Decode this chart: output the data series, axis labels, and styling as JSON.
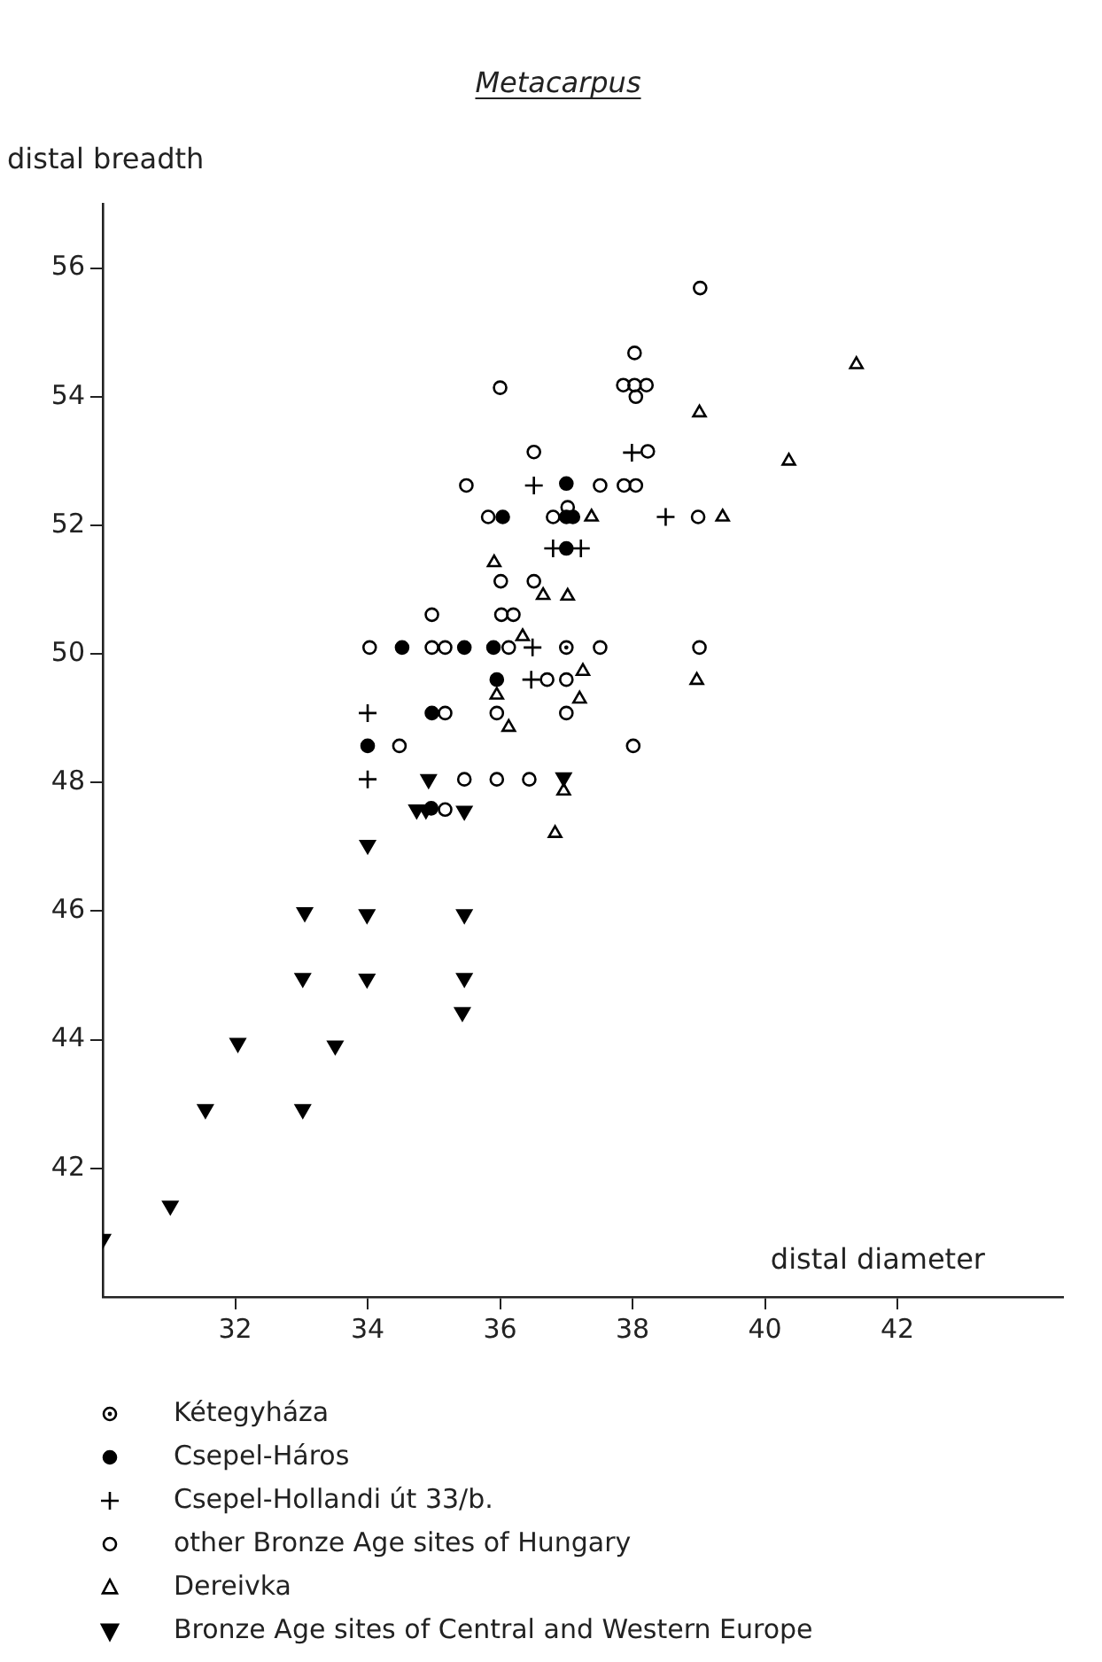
{
  "chart_data": {
    "type": "scatter",
    "title": "Metacarpus",
    "xlabel": "distal diameter",
    "ylabel": "distal breadth",
    "xlim": [
      30,
      44.5
    ],
    "ylim": [
      40,
      57
    ],
    "xticks": [
      32,
      34,
      36,
      38,
      40,
      42
    ],
    "yticks": [
      42,
      44,
      46,
      48,
      50,
      52,
      54,
      56
    ],
    "grid": false,
    "legend": "bottom",
    "series": [
      {
        "name": "Kétegyháza",
        "color": "#000000",
        "marker": "circle-dot",
        "x": [
          37.0
        ],
        "values": [
          50.1
        ]
      },
      {
        "name": "Csepel-Háros",
        "color": "#000000",
        "marker": "circle-filled",
        "x": [
          37.0,
          36.04,
          37.0,
          37.1,
          37.0,
          34.52,
          35.46,
          35.9,
          35.95,
          34.97,
          34.0,
          34.96
        ],
        "values": [
          52.65,
          52.13,
          52.13,
          52.13,
          51.64,
          50.1,
          50.1,
          50.1,
          49.6,
          49.08,
          48.57,
          47.6
        ]
      },
      {
        "name": "Csepel-Hollandi út 33/b.",
        "color": "#000000",
        "marker": "cross",
        "x": [
          36.51,
          37.99,
          38.5,
          36.8,
          37.22,
          36.49,
          36.47,
          34.0,
          34.0
        ],
        "values": [
          52.62,
          53.13,
          52.13,
          51.64,
          51.64,
          50.1,
          49.6,
          49.08,
          48.05
        ]
      },
      {
        "name": "other Bronze Age sites of Hungary",
        "color": "#000000",
        "marker": "circle-open",
        "x": [
          39.02,
          38.03,
          37.86,
          38.03,
          38.21,
          38.05,
          36.0,
          36.51,
          38.23,
          35.49,
          37.51,
          37.87,
          38.05,
          35.82,
          36.8,
          37.02,
          38.99,
          36.01,
          36.51,
          34.97,
          36.02,
          36.2,
          34.03,
          34.97,
          35.17,
          36.13,
          37.51,
          39.01,
          36.71,
          37.0,
          35.17,
          35.95,
          37.0,
          34.48,
          38.01,
          35.46,
          35.95,
          36.44,
          35.17
        ],
        "values": [
          55.69,
          54.68,
          54.18,
          54.18,
          54.18,
          54.0,
          54.14,
          53.14,
          53.15,
          52.62,
          52.62,
          52.62,
          52.62,
          52.13,
          52.13,
          52.28,
          52.13,
          51.13,
          51.13,
          50.61,
          50.61,
          50.61,
          50.1,
          50.1,
          50.1,
          50.1,
          50.1,
          50.1,
          49.6,
          49.6,
          49.08,
          49.08,
          49.08,
          48.57,
          48.57,
          48.05,
          48.05,
          48.05,
          47.58
        ]
      },
      {
        "name": "Dereivka",
        "color": "#000000",
        "marker": "triangle-open",
        "x": [
          39.01,
          37.38,
          39.36,
          35.91,
          36.65,
          37.02,
          36.34,
          37.25,
          38.97,
          35.95,
          37.2,
          36.13,
          36.96,
          36.83,
          41.38,
          40.36
        ],
        "values": [
          53.75,
          52.13,
          52.13,
          51.42,
          50.91,
          50.9,
          50.27,
          49.73,
          49.59,
          49.36,
          49.3,
          48.86,
          47.87,
          47.21,
          54.5,
          53.0
        ]
      },
      {
        "name": "Bronze Age sites of Central and Western Europe",
        "color": "#000000",
        "marker": "triangle-down",
        "x": [
          36.96,
          34.92,
          34.74,
          34.88,
          35.46,
          34.0,
          33.05,
          33.99,
          35.46,
          33.02,
          33.99,
          35.46,
          35.43,
          32.04,
          33.51,
          31.55,
          33.02,
          31.02,
          30.0
        ],
        "values": [
          48.08,
          48.05,
          47.58,
          47.58,
          47.56,
          47.03,
          45.98,
          45.95,
          45.95,
          44.96,
          44.95,
          44.96,
          44.43,
          43.95,
          43.91,
          42.92,
          42.92,
          41.42,
          40.9
        ]
      }
    ]
  }
}
